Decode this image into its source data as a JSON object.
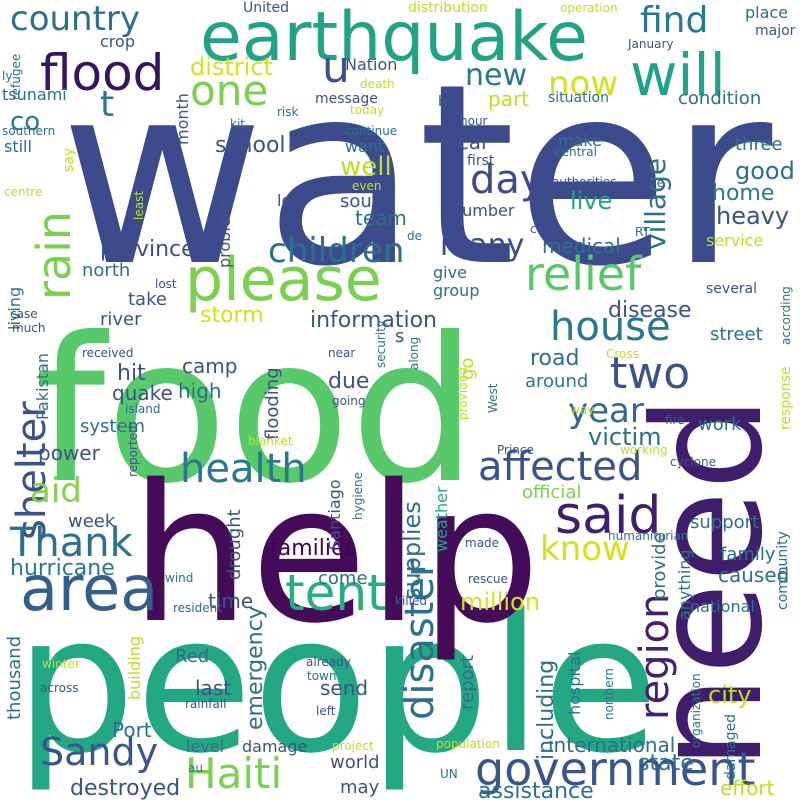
{
  "words": [
    {
      "text": "water",
      "color": "#3d4b8c"
    },
    {
      "text": "food",
      "color": "#57c96a"
    },
    {
      "text": "people",
      "color": "#24a884"
    },
    {
      "text": "help",
      "color": "#440c59"
    },
    {
      "text": "need",
      "color": "#3f1e6c"
    },
    {
      "text": "earthquake",
      "color": "#22a386"
    },
    {
      "text": "area",
      "color": "#355e8d"
    },
    {
      "text": "please",
      "color": "#7ad151"
    },
    {
      "text": "Haiti",
      "color": "#7ad151"
    },
    {
      "text": "flood",
      "color": "#36165e"
    },
    {
      "text": "will",
      "color": "#22a386"
    },
    {
      "text": "government",
      "color": "#39558c"
    },
    {
      "text": "Sandy",
      "color": "#39558c"
    },
    {
      "text": "house",
      "color": "#2a788e"
    },
    {
      "text": "said",
      "color": "#3f1e6c"
    },
    {
      "text": "tent",
      "color": "#29af7f"
    },
    {
      "text": "relief",
      "color": "#57c96a"
    },
    {
      "text": "health",
      "color": "#2a788e"
    },
    {
      "text": "affected",
      "color": "#3b528b"
    },
    {
      "text": "rain",
      "color": "#7ad151"
    },
    {
      "text": "shelter",
      "color": "#3b528b"
    },
    {
      "text": "Thank",
      "color": "#2e6f8e"
    },
    {
      "text": "aid",
      "color": "#84d44b"
    },
    {
      "text": "region",
      "color": "#481f70"
    },
    {
      "text": "disaster",
      "color": "#2e6f8e"
    },
    {
      "text": "children",
      "color": "#2e6f8e"
    },
    {
      "text": "one",
      "color": "#7ad151"
    },
    {
      "text": "know",
      "color": "#d2e21b"
    },
    {
      "text": "two",
      "color": "#3b528b"
    },
    {
      "text": "year",
      "color": "#31688e"
    },
    {
      "text": "country",
      "color": "#2e6f8e"
    },
    {
      "text": "find",
      "color": "#2a788e"
    },
    {
      "text": "u",
      "color": "#3b528b"
    },
    {
      "text": "t",
      "color": "#2a788e"
    },
    {
      "text": "new",
      "color": "#2a788e"
    },
    {
      "text": "now",
      "color": "#d2e21b"
    },
    {
      "text": "village",
      "color": "#2e6f8e"
    },
    {
      "text": "many",
      "color": "#3e4a89"
    },
    {
      "text": "day",
      "color": "#3e4a89"
    },
    {
      "text": "province",
      "color": "#3b528b"
    },
    {
      "text": "information",
      "color": "#3b528b"
    },
    {
      "text": "storm",
      "color": "#d2e21b"
    },
    {
      "text": "victim",
      "color": "#2e6f8e"
    },
    {
      "text": "supplies",
      "color": "#2e6f8e"
    },
    {
      "text": "including",
      "color": "#2e6f8e"
    },
    {
      "text": "emergency",
      "color": "#2e6f8e"
    },
    {
      "text": "million",
      "color": "#d2e21b"
    },
    {
      "text": "hurricane",
      "color": "#2a788e"
    },
    {
      "text": "families",
      "color": "#440154"
    },
    {
      "text": "city",
      "color": "#bddf26"
    },
    {
      "text": "state",
      "color": "#2e6f8e"
    },
    {
      "text": "destroyed",
      "color": "#3b528b"
    },
    {
      "text": "assistance",
      "color": "#2e6f8e"
    },
    {
      "text": "international",
      "color": "#2e6f8e"
    },
    {
      "text": "district",
      "color": "#d2e21b"
    },
    {
      "text": "co",
      "color": "#2a788e"
    },
    {
      "text": "school",
      "color": "#3b528b"
    },
    {
      "text": "well",
      "color": "#bddf26"
    },
    {
      "text": "live",
      "color": "#22a386"
    },
    {
      "text": "good",
      "color": "#2e6f8e"
    },
    {
      "text": "home",
      "color": "#2a788e"
    },
    {
      "text": "heavy",
      "color": "#3b528b"
    },
    {
      "text": "local",
      "color": "#3b528b"
    },
    {
      "text": "team",
      "color": "#2e6f8e"
    },
    {
      "text": "south",
      "color": "#3b528b"
    },
    {
      "text": "medical",
      "color": "#2e6f8e"
    },
    {
      "text": "disease",
      "color": "#3b528b"
    },
    {
      "text": "road",
      "color": "#2e6f8e"
    },
    {
      "text": "around",
      "color": "#2a788e"
    },
    {
      "text": "hit",
      "color": "#3b528b"
    },
    {
      "text": "quake",
      "color": "#3b528b"
    },
    {
      "text": "camp",
      "color": "#3b528b"
    },
    {
      "text": "high",
      "color": "#2e6f8e"
    },
    {
      "text": "river",
      "color": "#3b528b"
    },
    {
      "text": "take",
      "color": "#3b528b"
    },
    {
      "text": "north",
      "color": "#2e6f8e"
    },
    {
      "text": "power",
      "color": "#3b528b"
    },
    {
      "text": "system",
      "color": "#2e6f8e"
    },
    {
      "text": "due",
      "color": "#3b528b"
    },
    {
      "text": "flooding",
      "color": "#3b528b"
    },
    {
      "text": "time",
      "color": "#3b528b"
    },
    {
      "text": "week",
      "color": "#3b528b"
    },
    {
      "text": "drought",
      "color": "#3b528b"
    },
    {
      "text": "weather",
      "color": "#22a386"
    },
    {
      "text": "official",
      "color": "#7ad151"
    },
    {
      "text": "support",
      "color": "#2e6f8e"
    },
    {
      "text": "work",
      "color": "#2e6f8e"
    },
    {
      "text": "family",
      "color": "#2e6f8e"
    },
    {
      "text": "caused",
      "color": "#2e6f8e"
    },
    {
      "text": "street",
      "color": "#2e6f8e"
    },
    {
      "text": "service",
      "color": "#bddf26"
    },
    {
      "text": "condition",
      "color": "#2e6f8e"
    },
    {
      "text": "part",
      "color": "#bddf26"
    },
    {
      "text": "make",
      "color": "#2e6f8e"
    },
    {
      "text": "three",
      "color": "#2e6f8e"
    },
    {
      "text": "report",
      "color": "#2e6f8e"
    },
    {
      "text": "send",
      "color": "#3b528b"
    },
    {
      "text": "last",
      "color": "#3b528b"
    },
    {
      "text": "come",
      "color": "#2e6f8e"
    },
    {
      "text": "Port",
      "color": "#2e6f8e"
    },
    {
      "text": "Red",
      "color": "#2e6f8e"
    },
    {
      "text": "building",
      "color": "#bddf26"
    },
    {
      "text": "thousand",
      "color": "#2e6f8e"
    },
    {
      "text": "level",
      "color": "#2e6f8e"
    },
    {
      "text": "damage",
      "color": "#3b528b"
    },
    {
      "text": "world",
      "color": "#3b528b"
    },
    {
      "text": "may",
      "color": "#3b528b"
    },
    {
      "text": "provide",
      "color": "#2e6f8e"
    },
    {
      "text": "anything",
      "color": "#2e6f8e"
    },
    {
      "text": "national",
      "color": "#2e6f8e"
    },
    {
      "text": "hospital",
      "color": "#2e6f8e"
    },
    {
      "text": "northern",
      "color": "#2e6f8e"
    },
    {
      "text": "organization",
      "color": "#2e6f8e"
    },
    {
      "text": "damaged",
      "color": "#2e6f8e"
    },
    {
      "text": "effort",
      "color": "#bddf26"
    },
    {
      "text": "community",
      "color": "#2e6f8e"
    },
    {
      "text": "response",
      "color": "#bddf26"
    },
    {
      "text": "according",
      "color": "#2e6f8e"
    },
    {
      "text": "several",
      "color": "#3b528b"
    },
    {
      "text": "tsunami",
      "color": "#2e6f8e"
    },
    {
      "text": "crop",
      "color": "#3b528b"
    },
    {
      "text": "United",
      "color": "#3b528b"
    },
    {
      "text": "Nation",
      "color": "#3b528b"
    },
    {
      "text": "distribution",
      "color": "#bddf26"
    },
    {
      "text": "operation",
      "color": "#bddf26"
    },
    {
      "text": "today",
      "color": "#bddf26"
    },
    {
      "text": "place",
      "color": "#2e6f8e"
    },
    {
      "text": "major",
      "color": "#3b528b"
    },
    {
      "text": "January",
      "color": "#3b528b"
    },
    {
      "text": "month",
      "color": "#3b528b"
    },
    {
      "text": "message",
      "color": "#3b528b"
    },
    {
      "text": "risk",
      "color": "#2e6f8e"
    },
    {
      "text": "death",
      "color": "#bddf26"
    },
    {
      "text": "bit",
      "color": "#3b528b"
    },
    {
      "text": "situation",
      "color": "#2e6f8e"
    },
    {
      "text": "hour",
      "color": "#3b528b"
    },
    {
      "text": "continue",
      "color": "#2e6f8e"
    },
    {
      "text": "kit",
      "color": "#2e6f8e"
    },
    {
      "text": "still",
      "color": "#2e6f8e"
    },
    {
      "text": "southern",
      "color": "#2e6f8e"
    },
    {
      "text": "want",
      "color": "#2e6f8e"
    },
    {
      "text": "first",
      "color": "#3b528b"
    },
    {
      "text": "central",
      "color": "#2e6f8e"
    },
    {
      "text": "say",
      "color": "#bddf26"
    },
    {
      "text": "even",
      "color": "#bddf26"
    },
    {
      "text": "authorities",
      "color": "#3b528b"
    },
    {
      "text": "see",
      "color": "#3b528b"
    },
    {
      "text": "lot",
      "color": "#3b528b"
    },
    {
      "text": "centre",
      "color": "#bddf26"
    },
    {
      "text": "least",
      "color": "#bddf26"
    },
    {
      "text": "number",
      "color": "#3b528b"
    },
    {
      "text": "care",
      "color": "#3b528b"
    },
    {
      "text": "RT",
      "color": "#2e6f8e"
    },
    {
      "text": "de",
      "color": "#2e6f8e"
    },
    {
      "text": "problem",
      "color": "#3b528b"
    },
    {
      "text": "give",
      "color": "#2e6f8e"
    },
    {
      "text": "group",
      "color": "#2e6f8e"
    },
    {
      "text": "living",
      "color": "#2e6f8e"
    },
    {
      "text": "lost",
      "color": "#3b528b"
    },
    {
      "text": "much",
      "color": "#3b528b"
    },
    {
      "text": "case",
      "color": "#3b528b"
    },
    {
      "text": "s",
      "color": "#3b528b"
    },
    {
      "text": "go",
      "color": "#bddf26"
    },
    {
      "text": "security",
      "color": "#2e6f8e"
    },
    {
      "text": "along",
      "color": "#2e6f8e"
    },
    {
      "text": "Cross",
      "color": "#bddf26"
    },
    {
      "text": "received",
      "color": "#3b528b"
    },
    {
      "text": "near",
      "color": "#3b528b"
    },
    {
      "text": "going",
      "color": "#3b528b"
    },
    {
      "text": "island",
      "color": "#2e6f8e"
    },
    {
      "text": "Pakistan",
      "color": "#2e6f8e"
    },
    {
      "text": "provided",
      "color": "#bddf26"
    },
    {
      "text": "West",
      "color": "#2e6f8e"
    },
    {
      "text": "way",
      "color": "#bddf26"
    },
    {
      "text": "fire",
      "color": "#3b528b"
    },
    {
      "text": "blanket",
      "color": "#bddf26"
    },
    {
      "text": "reported",
      "color": "#3b528b"
    },
    {
      "text": "Santiago",
      "color": "#3b528b"
    },
    {
      "text": "hygiene",
      "color": "#2e6f8e"
    },
    {
      "text": "Prince",
      "color": "#3b528b"
    },
    {
      "text": "working",
      "color": "#bddf26"
    },
    {
      "text": "cyclone",
      "color": "#3b528b"
    },
    {
      "text": "humanitarian",
      "color": "#2e6f8e"
    },
    {
      "text": "made",
      "color": "#3b528b"
    },
    {
      "text": "wind",
      "color": "#2e6f8e"
    },
    {
      "text": "rescue",
      "color": "#3b528b"
    },
    {
      "text": "resident",
      "color": "#2e6f8e"
    },
    {
      "text": "killed",
      "color": "#3b528b"
    },
    {
      "text": "winter",
      "color": "#bddf26"
    },
    {
      "text": "already",
      "color": "#3b528b"
    },
    {
      "text": "town",
      "color": "#2e6f8e"
    },
    {
      "text": "across",
      "color": "#3b528b"
    },
    {
      "text": "rainfall",
      "color": "#3b528b"
    },
    {
      "text": "left",
      "color": "#3b528b"
    },
    {
      "text": "project",
      "color": "#bddf26"
    },
    {
      "text": "population",
      "color": "#bddf26"
    },
    {
      "text": "UN",
      "color": "#2e6f8e"
    },
    {
      "text": "au",
      "color": "#2e6f8e"
    },
    {
      "text": "refugee",
      "color": "#2e6f8e"
    },
    {
      "text": "ly",
      "color": "#2e6f8e"
    }
  ]
}
